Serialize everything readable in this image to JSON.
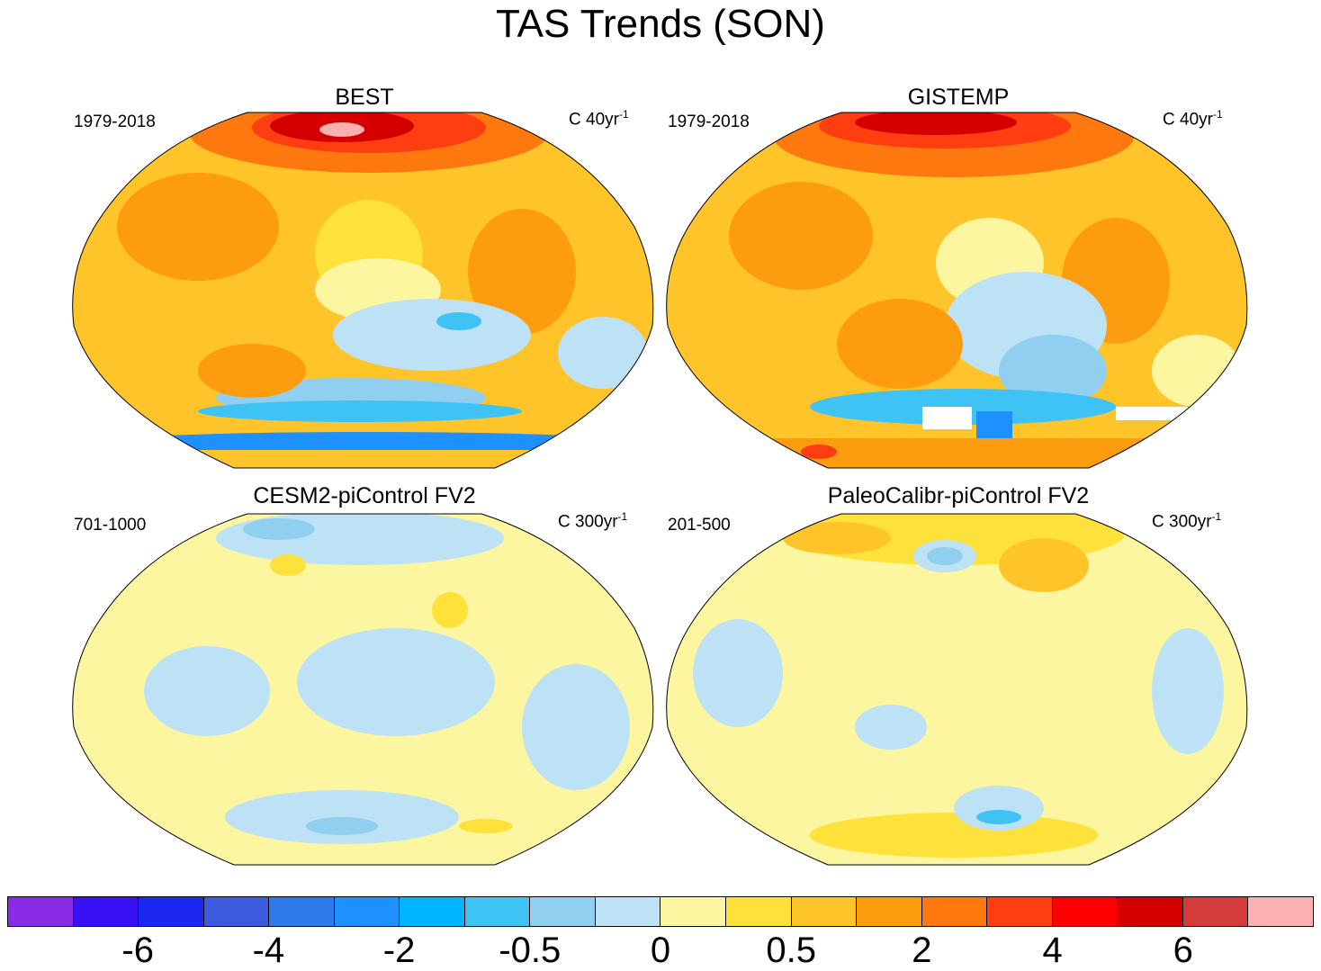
{
  "title": "TAS Trends (SON)",
  "panels": [
    {
      "title": "BEST",
      "period": "1979-2018",
      "units": "C 40yr",
      "units_exp": "-1"
    },
    {
      "title": "GISTEMP",
      "period": "1979-2018",
      "units": "C 40yr",
      "units_exp": "-1"
    },
    {
      "title": "CESM2-piControl FV2",
      "period": "701-1000",
      "units": "C 300yr",
      "units_exp": "-1"
    },
    {
      "title": "PaleoCalibr-piControl FV2",
      "period": "201-500",
      "units": "C 300yr",
      "units_exp": "-1"
    }
  ],
  "colorbar": {
    "colors": [
      "#8a2be8",
      "#3a10f5",
      "#1a28f0",
      "#3c5bde",
      "#2f7aea",
      "#1e90ff",
      "#00b4ff",
      "#3fc3f5",
      "#90cff0",
      "#bde2f5",
      "#fdf6a0",
      "#fee13a",
      "#fec42a",
      "#fe9c10",
      "#fe7810",
      "#fe3d10",
      "#fe0000",
      "#d40000",
      "#d43c3c",
      "#fdb0b0"
    ],
    "labels": [
      "-6",
      "-4",
      "-2",
      "-0.5",
      "0",
      "0.5",
      "2",
      "4",
      "6"
    ]
  }
}
